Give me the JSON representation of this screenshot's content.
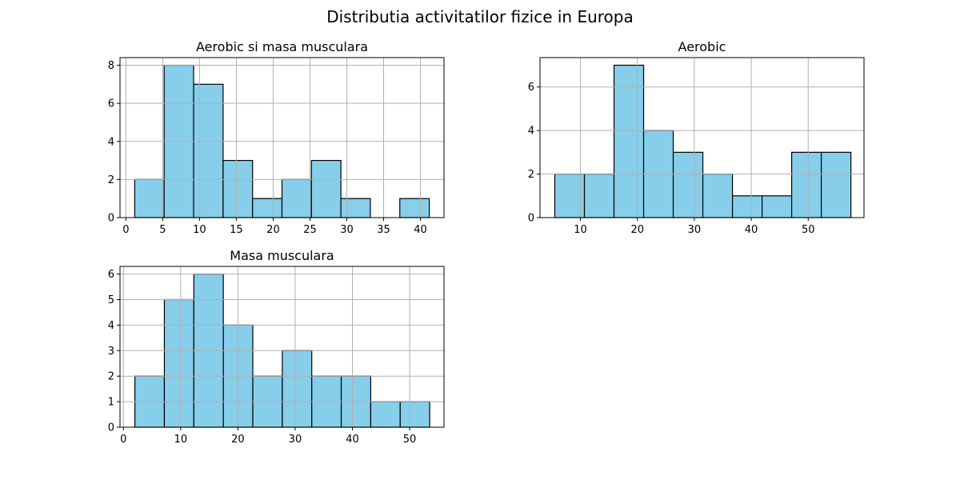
{
  "figure_title": "Distributia activitatilor fizice in Europa",
  "colors": {
    "bar_fill": "#87CEEB",
    "bar_edge": "#000000",
    "grid": "#b0b0b0",
    "axis": "#000000"
  },
  "chart_data": [
    {
      "type": "bar",
      "title": "Aerobic si masa musculara",
      "grid": true,
      "xlim": [
        -0.8,
        43.2
      ],
      "ylim": [
        0,
        8.4
      ],
      "xticks": [
        0,
        5,
        10,
        15,
        20,
        25,
        30,
        35,
        40
      ],
      "yticks": [
        0,
        2,
        4,
        6,
        8
      ],
      "bin_edges": [
        1.2,
        5.2,
        9.2,
        13.2,
        17.2,
        21.2,
        25.2,
        29.2,
        33.2,
        37.2,
        41.2
      ],
      "values": [
        2,
        8,
        7,
        3,
        1,
        2,
        3,
        1,
        0,
        1
      ]
    },
    {
      "type": "bar",
      "title": "Aerobic",
      "grid": true,
      "xlim": [
        2.9,
        59.8
      ],
      "ylim": [
        0,
        7.35
      ],
      "xticks": [
        10,
        20,
        30,
        40,
        50
      ],
      "yticks": [
        0,
        2,
        4,
        6
      ],
      "bin_edges": [
        5.5,
        10.7,
        15.9,
        21.1,
        26.3,
        31.5,
        36.7,
        41.9,
        47.1,
        52.3,
        57.5
      ],
      "values": [
        2,
        2,
        7,
        4,
        3,
        2,
        1,
        1,
        3,
        3
      ]
    },
    {
      "type": "bar",
      "title": "Masa musculara",
      "grid": true,
      "xlim": [
        -0.6,
        56.0
      ],
      "ylim": [
        0,
        6.3
      ],
      "xticks": [
        0,
        10,
        20,
        30,
        40,
        50
      ],
      "yticks": [
        0,
        1,
        2,
        3,
        4,
        5,
        6
      ],
      "bin_edges": [
        2.0,
        7.15,
        12.3,
        17.45,
        22.6,
        27.75,
        32.9,
        38.05,
        43.2,
        48.35,
        53.5
      ],
      "values": [
        2,
        5,
        6,
        4,
        2,
        3,
        2,
        2,
        1,
        1
      ]
    }
  ]
}
